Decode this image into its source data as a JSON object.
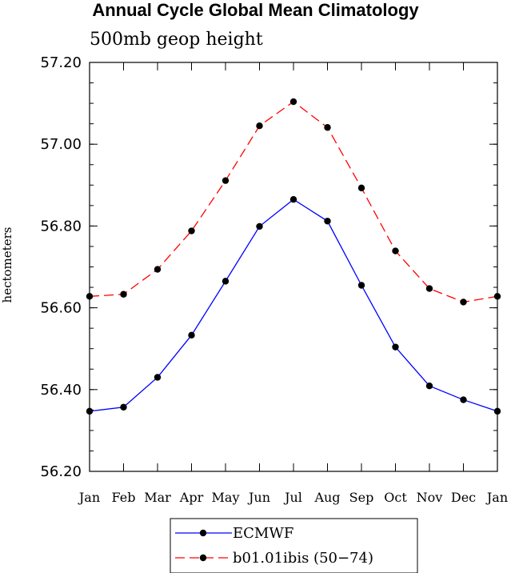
{
  "chart_data": {
    "type": "line",
    "title": "Annual Cycle Global Mean Climatology",
    "subtitle": "500mb geop height",
    "xlabel": "",
    "ylabel": "hectometers",
    "categories": [
      "Jan",
      "Feb",
      "Mar",
      "Apr",
      "May",
      "Jun",
      "Jul",
      "Aug",
      "Sep",
      "Oct",
      "Nov",
      "Dec",
      "Jan"
    ],
    "ylim": [
      56.2,
      57.2
    ],
    "yticks": [
      "56.20",
      "56.40",
      "56.60",
      "56.80",
      "57.00",
      "57.20"
    ],
    "grid": false,
    "legend_position": "bottom",
    "series": [
      {
        "name": "ECMWF",
        "color": "#0000ff",
        "dash": "solid",
        "values": [
          56.347,
          56.357,
          56.43,
          56.533,
          56.665,
          56.799,
          56.865,
          56.812,
          56.655,
          56.504,
          56.409,
          56.375,
          56.347
        ]
      },
      {
        "name": "b01.01ibis (50−74)",
        "color": "#ff0000",
        "dash": "dashed",
        "values": [
          56.628,
          56.633,
          56.694,
          56.788,
          56.911,
          57.045,
          57.104,
          57.041,
          56.893,
          56.739,
          56.647,
          56.614,
          56.628
        ]
      }
    ]
  }
}
